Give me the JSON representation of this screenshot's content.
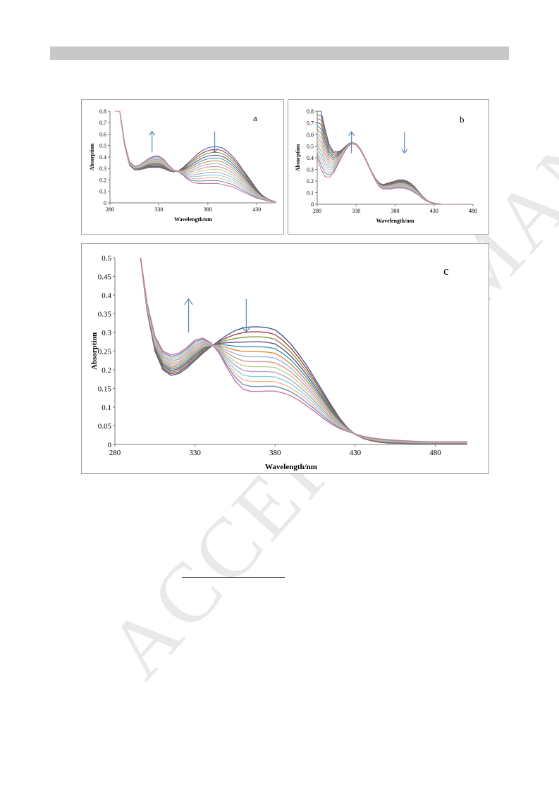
{
  "page": {
    "watermark": "ACCEPTED MANUSCRIPT"
  },
  "chart_data": [
    {
      "id": "a",
      "type": "line",
      "panel_label": "a",
      "xlabel": "Wavelength/nm",
      "ylabel": "Absorption",
      "xlim": [
        280,
        450
      ],
      "ylim": [
        0,
        0.8
      ],
      "xticks": [
        280,
        330,
        380,
        430
      ],
      "yticks": [
        0,
        0.1,
        0.2,
        0.3,
        0.4,
        0.5,
        0.6,
        0.7,
        0.8
      ],
      "grid": false,
      "series_count": 14,
      "x": [
        285,
        290,
        295,
        300,
        305,
        310,
        315,
        320,
        325,
        330,
        335,
        340,
        345,
        350,
        355,
        360,
        365,
        370,
        375,
        380,
        385,
        390,
        395,
        400,
        405,
        410,
        415,
        420,
        425,
        430,
        435,
        440,
        445,
        450
      ],
      "first_series": [
        0.8,
        0.8,
        0.5,
        0.33,
        0.29,
        0.29,
        0.3,
        0.31,
        0.31,
        0.31,
        0.3,
        0.28,
        0.27,
        0.28,
        0.31,
        0.35,
        0.39,
        0.43,
        0.46,
        0.48,
        0.49,
        0.49,
        0.48,
        0.45,
        0.41,
        0.36,
        0.3,
        0.24,
        0.18,
        0.12,
        0.07,
        0.04,
        0.02,
        0.01
      ],
      "last_series": [
        0.8,
        0.8,
        0.52,
        0.36,
        0.32,
        0.33,
        0.36,
        0.39,
        0.41,
        0.41,
        0.38,
        0.33,
        0.29,
        0.27,
        0.24,
        0.2,
        0.18,
        0.17,
        0.17,
        0.17,
        0.17,
        0.17,
        0.16,
        0.15,
        0.14,
        0.12,
        0.1,
        0.08,
        0.06,
        0.04,
        0.03,
        0.02,
        0.01,
        0.01
      ],
      "arrows": [
        {
          "x": 323,
          "direction": "up"
        },
        {
          "x": 387,
          "direction": "down"
        }
      ]
    },
    {
      "id": "b",
      "type": "line",
      "panel_label": "b",
      "xlabel": "Wavelength/nm",
      "ylabel": "Absorption",
      "xlim": [
        280,
        480
      ],
      "ylim": [
        0,
        0.8
      ],
      "xticks": [
        280,
        330,
        380,
        430,
        480
      ],
      "yticks": [
        0,
        0.1,
        0.2,
        0.3,
        0.4,
        0.5,
        0.6,
        0.7,
        0.8
      ],
      "grid": false,
      "series_count": 14,
      "x": [
        280,
        285,
        290,
        295,
        300,
        305,
        310,
        315,
        320,
        325,
        330,
        335,
        340,
        345,
        350,
        355,
        360,
        365,
        370,
        375,
        380,
        385,
        390,
        395,
        400,
        405,
        410,
        415,
        420,
        425,
        430,
        435,
        440,
        445,
        450,
        460,
        470,
        480
      ],
      "first_series": [
        0.8,
        0.8,
        0.65,
        0.52,
        0.46,
        0.45,
        0.46,
        0.49,
        0.52,
        0.53,
        0.52,
        0.48,
        0.42,
        0.35,
        0.28,
        0.22,
        0.18,
        0.17,
        0.18,
        0.19,
        0.2,
        0.21,
        0.21,
        0.2,
        0.18,
        0.15,
        0.11,
        0.07,
        0.04,
        0.02,
        0.01,
        0.005,
        0,
        0,
        0,
        0,
        0,
        0
      ],
      "last_series": [
        0.4,
        0.3,
        0.24,
        0.23,
        0.26,
        0.32,
        0.39,
        0.45,
        0.5,
        0.52,
        0.51,
        0.47,
        0.41,
        0.34,
        0.27,
        0.2,
        0.15,
        0.13,
        0.13,
        0.13,
        0.14,
        0.14,
        0.14,
        0.13,
        0.12,
        0.1,
        0.08,
        0.05,
        0.03,
        0.015,
        0.008,
        0.004,
        0,
        0,
        0,
        0,
        0,
        0
      ],
      "arrows": [
        {
          "x": 324,
          "direction": "up"
        },
        {
          "x": 392,
          "direction": "down"
        }
      ]
    },
    {
      "id": "c",
      "type": "line",
      "panel_label": "c",
      "xlabel": "Wavelength/nm",
      "ylabel": "Absorption",
      "xlim": [
        280,
        500
      ],
      "ylim": [
        0,
        0.5
      ],
      "xticks": [
        280,
        330,
        380,
        430,
        480
      ],
      "yticks": [
        0,
        0.05,
        0.1,
        0.15,
        0.2,
        0.25,
        0.3,
        0.35,
        0.4,
        0.45,
        0.5
      ],
      "grid": false,
      "series_count": 14,
      "x": [
        296,
        300,
        305,
        310,
        315,
        320,
        325,
        330,
        335,
        340,
        345,
        350,
        355,
        360,
        365,
        370,
        375,
        380,
        385,
        390,
        395,
        400,
        405,
        410,
        415,
        420,
        425,
        430,
        435,
        440,
        445,
        450,
        460,
        470,
        480,
        490,
        500
      ],
      "first_series": [
        0.5,
        0.36,
        0.25,
        0.2,
        0.185,
        0.19,
        0.205,
        0.225,
        0.245,
        0.262,
        0.278,
        0.293,
        0.305,
        0.312,
        0.315,
        0.315,
        0.313,
        0.307,
        0.29,
        0.268,
        0.24,
        0.21,
        0.175,
        0.14,
        0.105,
        0.072,
        0.045,
        0.027,
        0.016,
        0.01,
        0.006,
        0.004,
        0.003,
        0.002,
        0.002,
        0.002,
        0.002
      ],
      "last_series": [
        0.5,
        0.38,
        0.29,
        0.25,
        0.24,
        0.245,
        0.26,
        0.28,
        0.285,
        0.272,
        0.245,
        0.205,
        0.17,
        0.148,
        0.142,
        0.142,
        0.143,
        0.143,
        0.138,
        0.13,
        0.118,
        0.103,
        0.087,
        0.07,
        0.055,
        0.043,
        0.035,
        0.028,
        0.022,
        0.018,
        0.015,
        0.013,
        0.01,
        0.008,
        0.007,
        0.007,
        0.007
      ],
      "arrows": [
        {
          "x": 326,
          "direction": "up"
        },
        {
          "x": 362,
          "direction": "down"
        }
      ]
    }
  ],
  "series_colors": [
    "#3b5f9e",
    "#a8403c",
    "#7f9a45",
    "#6b4f8f",
    "#3a9ab3",
    "#dd8a3a",
    "#9db6d9",
    "#d99794",
    "#bcd08f",
    "#b4a5cc",
    "#8ccde0",
    "#f2b98a",
    "#6f8ec4",
    "#c77b9c"
  ],
  "arrow_color": "#5b86c0"
}
